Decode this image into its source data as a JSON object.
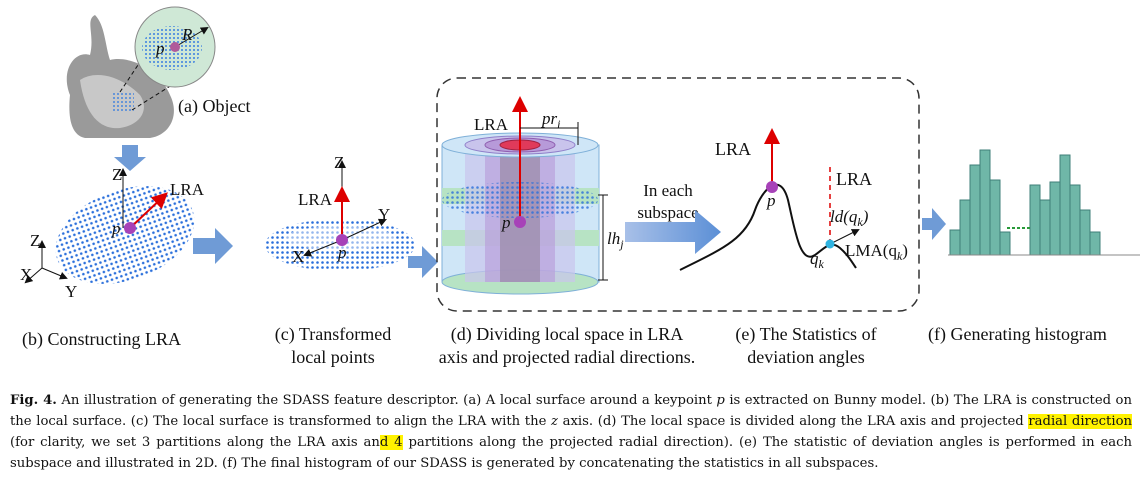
{
  "figure": {
    "a": {
      "label": "(a) Object",
      "r": "R",
      "p": "p"
    },
    "b": {
      "z": "Z",
      "lra": "LRA",
      "p": "p",
      "axis_z": "Z",
      "axis_x": "X",
      "axis_y": "Y",
      "caption": "(b) Constructing LRA"
    },
    "c": {
      "z": "Z",
      "lra": "LRA",
      "y": "Y",
      "x": "X",
      "p": "p",
      "caption": [
        "(c) Transformed",
        "local points"
      ]
    },
    "d": {
      "lra": "LRA",
      "pr": {
        "text": "pr",
        "sub": "i"
      },
      "p": "p",
      "lh": {
        "text": "lh",
        "sub": "j"
      },
      "note": [
        "In each",
        "subspace"
      ],
      "caption": [
        "(d) Dividing local space in LRA",
        "axis and projected radial directions."
      ]
    },
    "e": {
      "lra": "LRA",
      "p": "p",
      "lra2": "LRA",
      "ld": {
        "before": "ld(q",
        "sub": "k",
        "after": ")"
      },
      "q": {
        "text": "q",
        "sub": "k"
      },
      "lma": {
        "before": "LMA(q",
        "sub": "k",
        "after": ")"
      },
      "caption": [
        "(e) The Statistics of",
        "deviation angles"
      ]
    },
    "f": {
      "caption": "(f) Generating histogram"
    }
  },
  "caption": {
    "label": "Fig. 4.",
    "text": [
      " An illustration of generating the SDASS feature descriptor. (a) A local surface around a keypoint ",
      "p",
      " is extracted on Bunny model. (b) The LRA is constructed on the local surface. (c) The local surface is transformed to align the LRA with the ",
      "z",
      " axis. (d) The local space is divided along the LRA axis and projected ",
      "radial direction",
      " (for clarity, we set 3 partitions along the LRA axis an",
      "d 4",
      " partitions along the projected radial direction). (e) The statistic of deviation angles is performed in each subspace and illustrated in 2D. (f) The final histogram of our SDASS is generated by concatenating the statistics in all subspaces."
    ]
  }
}
